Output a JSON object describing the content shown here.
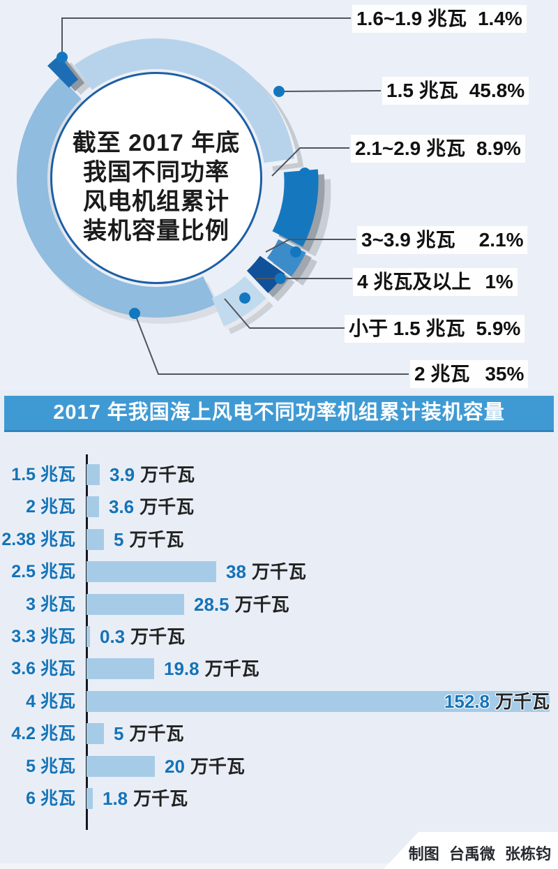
{
  "page": {
    "background": "#e9eef6"
  },
  "pie": {
    "title_lines": [
      "截至 2017 年底",
      "我国不同功率",
      "风电机组累计",
      "装机容量比例"
    ]
  },
  "banner": {
    "title": "2017 年我国海上风电不同功率机组累计装机容量"
  },
  "credit": {
    "text": "制图 台禹微 张栋钧"
  },
  "chart_data": [
    {
      "type": "pie",
      "title": "截至 2017 年底我国不同功率风电机组累计装机容量比例",
      "legend_position": "right-callouts",
      "slices": [
        {
          "label": "1.6~1.9 兆瓦",
          "pct": 1.4,
          "pct_label": "1.4%",
          "color": "#1d6db4"
        },
        {
          "label": "1.5 兆瓦",
          "pct": 45.8,
          "pct_label": "45.8%",
          "color": "#b7d3eb"
        },
        {
          "label": "2.1~2.9 兆瓦",
          "pct": 8.9,
          "pct_label": "8.9%",
          "color": "#1578be"
        },
        {
          "label": "3~3.9 兆瓦",
          "pct": 2.1,
          "pct_label": "2.1%",
          "color": "#3d8cca"
        },
        {
          "label": "4 兆瓦及以上",
          "pct": 1,
          "pct_label": "1%",
          "color": "#10529a"
        },
        {
          "label": "小于 1.5 兆瓦",
          "pct": 5.9,
          "pct_label": "5.9%",
          "color": "#c2daee"
        },
        {
          "label": "2 兆瓦",
          "pct": 35,
          "pct_label": "35%",
          "color": "#8fbcdf"
        }
      ]
    },
    {
      "type": "bar",
      "orientation": "horizontal",
      "title": "2017 年我国海上风电不同功率机组累计装机容量",
      "unit": "万千瓦",
      "categories": [
        "1.5 兆瓦",
        "2 兆瓦",
        "2.38 兆瓦",
        "2.5 兆瓦",
        "3 兆瓦",
        "3.3 兆瓦",
        "3.6 兆瓦",
        "4 兆瓦",
        "4.2 兆瓦",
        "5 兆瓦",
        "6 兆瓦"
      ],
      "values": [
        3.9,
        3.6,
        5,
        38,
        28.5,
        0.3,
        19.8,
        152.8,
        5,
        20,
        1.8
      ],
      "bar_color": "#a6cbe6",
      "label_color": "#1373b8",
      "grid": false
    }
  ]
}
